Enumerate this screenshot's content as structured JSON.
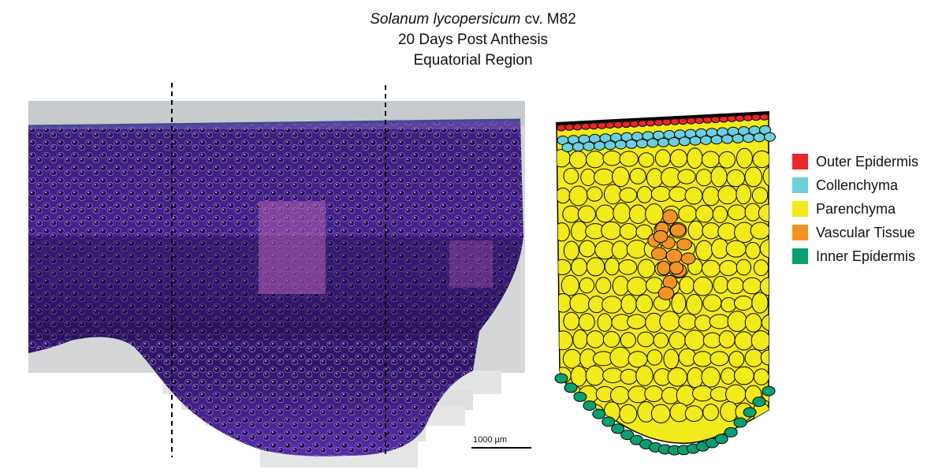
{
  "title": {
    "species": "Solanum lycopersicum",
    "cultivar": "cv. M82",
    "stage": "20 Days Post Anthesis",
    "region": "Equatorial Region"
  },
  "scale_bar": {
    "label": "1000 µm"
  },
  "legend": {
    "items": [
      {
        "label": "Outer Epidermis",
        "color": "#e8262b"
      },
      {
        "label": "Collenchyma",
        "color": "#6ccfdd"
      },
      {
        "label": "Parenchyma",
        "color": "#f2ea1a"
      },
      {
        "label": "Vascular Tissue",
        "color": "#f39324"
      },
      {
        "label": "Inner Epidermis",
        "color": "#0a9f72"
      }
    ]
  },
  "colors": {
    "stain_dark": "#2a0f5c",
    "stain_mid": "#5a2ba8",
    "stain_light": "#8a5ad8",
    "vascular_highlight": "#b65fb3"
  }
}
